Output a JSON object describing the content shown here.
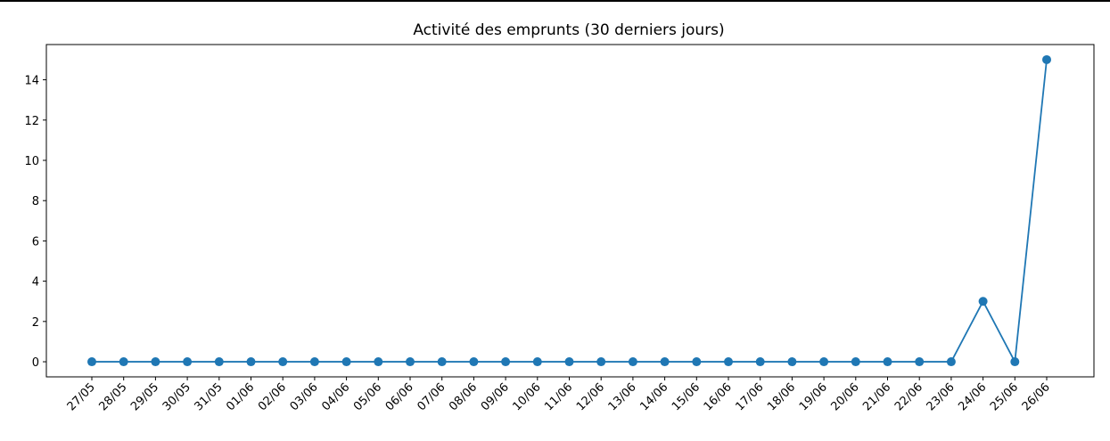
{
  "chart_data": {
    "type": "line",
    "title": "Activité des emprunts (30 derniers jours)",
    "xlabel": "",
    "ylabel": "",
    "categories": [
      "27/05",
      "28/05",
      "29/05",
      "30/05",
      "31/05",
      "01/06",
      "02/06",
      "03/06",
      "04/06",
      "05/06",
      "06/06",
      "07/06",
      "08/06",
      "09/06",
      "10/06",
      "11/06",
      "12/06",
      "13/06",
      "14/06",
      "15/06",
      "16/06",
      "17/06",
      "18/06",
      "19/06",
      "20/06",
      "21/06",
      "22/06",
      "23/06",
      "24/06",
      "25/06",
      "26/06"
    ],
    "series": [
      {
        "values": [
          0,
          0,
          0,
          0,
          0,
          0,
          0,
          0,
          0,
          0,
          0,
          0,
          0,
          0,
          0,
          0,
          0,
          0,
          0,
          0,
          0,
          0,
          0,
          0,
          0,
          0,
          0,
          0,
          3,
          0,
          15
        ]
      }
    ],
    "yticks": [
      0,
      2,
      4,
      6,
      8,
      10,
      12,
      14
    ],
    "ylim": [
      -0.75,
      15.75
    ],
    "grid": false,
    "legend": "none",
    "line_color": "#1f77b4",
    "x_tick_rotation_deg": 45
  }
}
